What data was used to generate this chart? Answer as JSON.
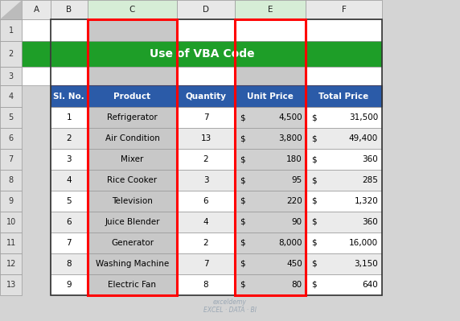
{
  "title": "Use of VBA Code",
  "title_bg": "#1E9E28",
  "title_color": "#FFFFFF",
  "header_bg": "#2B5BA8",
  "header_color": "#FFFFFF",
  "col_headers": [
    "Sl. No.",
    "Product",
    "Quantity",
    "Unit Price",
    "Total Price"
  ],
  "rows": [
    [
      1,
      "Refrigerator",
      7,
      "4,500",
      "31,500"
    ],
    [
      2,
      "Air Condition",
      13,
      "3,800",
      "49,400"
    ],
    [
      3,
      "Mixer",
      2,
      "180",
      "360"
    ],
    [
      4,
      "Rice Cooker",
      3,
      "95",
      "285"
    ],
    [
      5,
      "Television",
      6,
      "220",
      "1,320"
    ],
    [
      6,
      "Juice Blender",
      4,
      "90",
      "360"
    ],
    [
      7,
      "Generator",
      2,
      "8,000",
      "16,000"
    ],
    [
      8,
      "Washing Machine",
      7,
      "450",
      "3,150"
    ],
    [
      9,
      "Electric Fan",
      8,
      "80",
      "640"
    ]
  ],
  "col_letters": [
    "A",
    "B",
    "C",
    "D",
    "E",
    "F"
  ],
  "row_numbers": [
    "1",
    "2",
    "3",
    "4",
    "5",
    "6",
    "7",
    "8",
    "9",
    "10",
    "11",
    "12",
    "13"
  ],
  "fig_bg": "#D4D4D4",
  "cell_white": "#FFFFFF",
  "cell_light": "#E8E8E8",
  "cell_gray": "#C8C8C8",
  "col_c_data_bg": "#C8C8C8",
  "col_e_data_bg": "#D0D0D0",
  "col_c_header_tint": "#D6EDD6",
  "col_e_header_tint": "#D6EDD6",
  "row_label_bg": "#E0E0E0",
  "row_alt1": "#FFFFFF",
  "row_alt2": "#EBEBEB",
  "grid_color": "#999999",
  "red_border": "#FF0000",
  "watermark_color": "#8899AA",
  "watermark": "exceldemy\nEXCEL · DATA · BI",
  "fig_width": 5.72,
  "fig_height": 3.99,
  "dpi": 100
}
